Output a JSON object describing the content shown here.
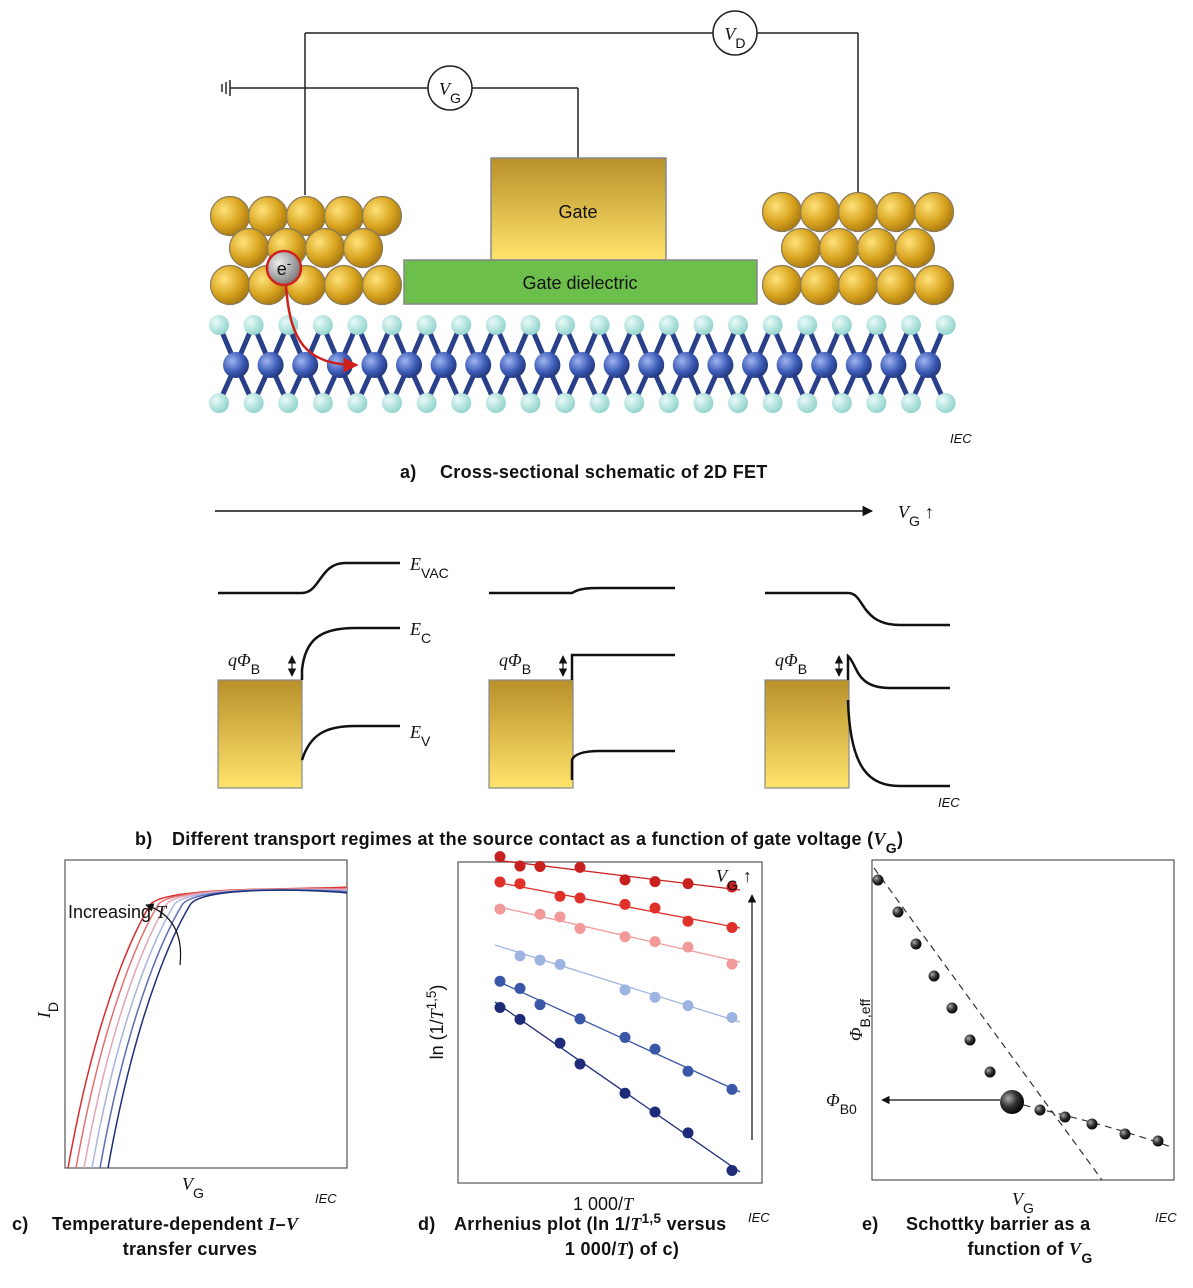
{
  "panel_a": {
    "voltmeter_drain": [
      "V",
      "D"
    ],
    "voltmeter_gate": [
      "V",
      "G"
    ],
    "gate": "Gate",
    "gate_dielectric": "Gate dielectric",
    "electron": [
      "e",
      "-"
    ],
    "watermark": "IEC",
    "caption": {
      "label": "a)",
      "text": "Cross-sectional schematic of 2D FET"
    }
  },
  "panel_b": {
    "axis_label": [
      "V",
      "G",
      " ↑"
    ],
    "levels": {
      "vacuum": [
        "E",
        "VAC"
      ],
      "conduction": [
        "E",
        "C"
      ],
      "valence": [
        "E",
        "V"
      ]
    },
    "barrier_labels": [
      [
        "q",
        "Φ",
        "B"
      ],
      [
        "q",
        "Φ",
        "B"
      ],
      [
        "q",
        "Φ",
        "B"
      ]
    ],
    "watermark": "IEC",
    "caption": {
      "label": "b)",
      "text": [
        "Different transport regimes at the source contact as a function of gate voltage (",
        "V",
        "G",
        ")"
      ]
    }
  },
  "panel_c": {
    "annotation": [
      "Increasing ",
      "T"
    ],
    "y_label": [
      "I",
      "D"
    ],
    "x_label": [
      "V",
      "G"
    ],
    "watermark": "IEC",
    "caption": {
      "label": "c)",
      "lines": [
        [
          "Temperature-dependent ",
          "I",
          "–",
          "V"
        ],
        [
          "transfer curves"
        ]
      ]
    }
  },
  "panel_d": {
    "annotation": [
      "V",
      "G",
      " ↑"
    ],
    "y_label": [
      "ln (1/",
      "T",
      "1,5",
      ")"
    ],
    "x_label": [
      "1 000/",
      "T"
    ],
    "watermark": "IEC",
    "caption": {
      "label": "d)",
      "lines": [
        [
          "Arrhenius plot (ln 1/",
          "T",
          "1,5",
          " versus"
        ],
        [
          "1 000/",
          "T",
          ") of c)"
        ]
      ]
    }
  },
  "panel_e": {
    "y_label": [
      "Φ",
      "B,eff"
    ],
    "marker_label": [
      "Φ",
      "B0"
    ],
    "x_label": [
      "V",
      "G"
    ],
    "watermark": "IEC",
    "caption": {
      "label": "e)",
      "lines": [
        [
          "Schottky barrier as a"
        ],
        [
          "function of ",
          "V",
          "G"
        ]
      ]
    }
  }
}
